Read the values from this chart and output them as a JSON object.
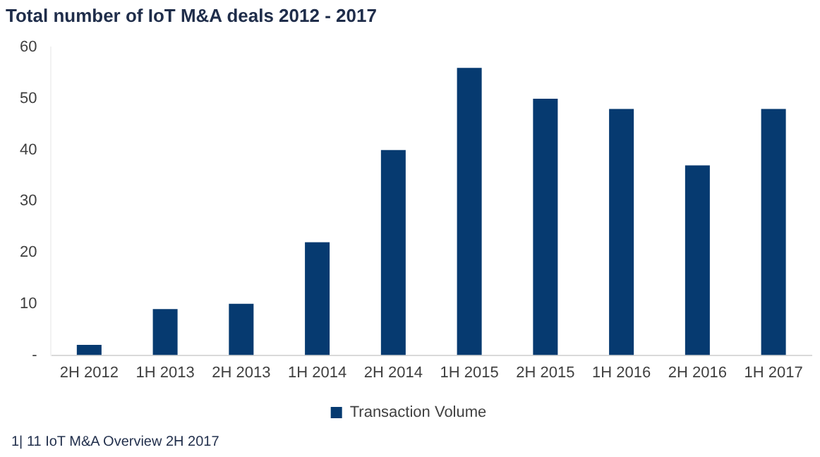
{
  "chart_data": {
    "type": "bar",
    "title": "Total number of IoT M&A deals 2012 - 2017",
    "categories": [
      "2H 2012",
      "1H 2013",
      "2H 2013",
      "1H 2014",
      "2H 2014",
      "1H 2015",
      "2H 2015",
      "1H 2016",
      "2H 2016",
      "1H 2017"
    ],
    "series": [
      {
        "name": "Transaction Volume",
        "color": "#063a70",
        "values": [
          2,
          9,
          10,
          22,
          40,
          56,
          50,
          48,
          37,
          48
        ]
      }
    ],
    "ylim": [
      0,
      60
    ],
    "yticks": [
      {
        "value": 0,
        "label": "-"
      },
      10,
      20,
      30,
      40,
      50,
      60
    ],
    "grid": false,
    "legend": "bottom",
    "annotations": [
      "1| 11 IoT M&A Overview 2H 2017"
    ]
  }
}
